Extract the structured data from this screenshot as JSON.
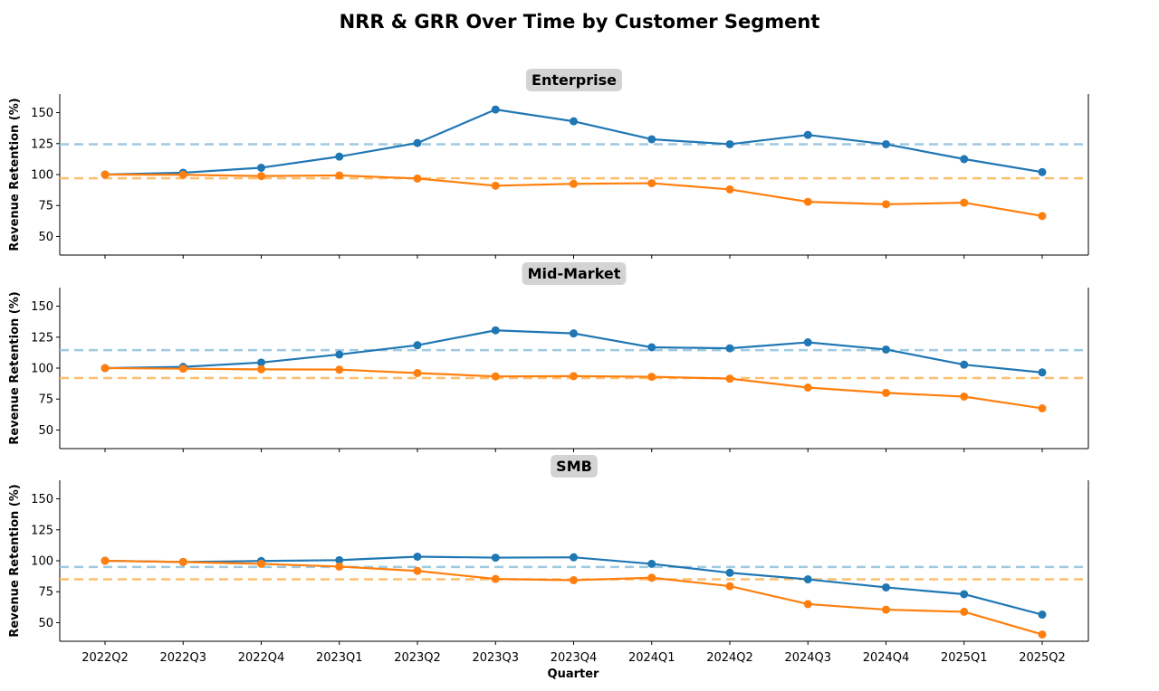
{
  "chart_data": {
    "type": "line",
    "title": "NRR & GRR Over Time by Customer Segment",
    "xlabel": "Quarter",
    "ylabel": "Revenue Retention (%)",
    "categories": [
      "2022Q2",
      "2022Q3",
      "2022Q4",
      "2023Q1",
      "2023Q2",
      "2023Q3",
      "2023Q4",
      "2024Q1",
      "2024Q2",
      "2024Q3",
      "2024Q4",
      "2025Q1",
      "2025Q2"
    ],
    "ylim": [
      35,
      165
    ],
    "yticks": [
      50,
      75,
      100,
      125,
      150
    ],
    "grid": false,
    "colors": {
      "nrr": "#1f77b4",
      "grr": "#ff7f0e",
      "nrr_avg": "#9ecae1",
      "grr_avg": "#fdbf6f",
      "title_box": "#d3d3d3"
    },
    "panels": [
      {
        "title": "Enterprise",
        "series": [
          {
            "key": "nrr",
            "values": [
              100,
              101.5,
              105.5,
              114.5,
              125.5,
              152.5,
              143,
              128.5,
              124.5,
              132,
              124.5,
              112.5,
              102
            ]
          },
          {
            "key": "grr",
            "values": [
              100,
              99.8,
              98.8,
              99.3,
              96.8,
              91,
              92.5,
              93,
              88,
              78,
              76,
              77.3,
              66.5
            ]
          }
        ],
        "reference_lines": [
          {
            "key": "nrr_avg",
            "value": 124.5
          },
          {
            "key": "grr_avg",
            "value": 97
          }
        ]
      },
      {
        "title": "Mid-Market",
        "series": [
          {
            "key": "nrr",
            "values": [
              100,
              101,
              104.5,
              111,
              118.5,
              130.5,
              128,
              116.8,
              116,
              120.8,
              115,
              102.8,
              96.5
            ]
          },
          {
            "key": "grr",
            "values": [
              100,
              99.5,
              99,
              98.8,
              96,
              93.3,
              93.5,
              93,
              91.5,
              84.3,
              80,
              77,
              67.5
            ]
          }
        ],
        "reference_lines": [
          {
            "key": "nrr_avg",
            "value": 114.5
          },
          {
            "key": "grr_avg",
            "value": 92
          }
        ]
      },
      {
        "title": "SMB",
        "series": [
          {
            "key": "nrr",
            "values": [
              100,
              99,
              99.8,
              100.5,
              103.3,
              102.5,
              102.8,
              97.5,
              90.3,
              85,
              78.5,
              73,
              56.5
            ]
          },
          {
            "key": "grr",
            "values": [
              100,
              99,
              97.5,
              95.3,
              91.8,
              85.3,
              84.3,
              86.3,
              79.5,
              65,
              60.5,
              58.8,
              40.5
            ]
          }
        ],
        "reference_lines": [
          {
            "key": "nrr_avg",
            "value": 95
          }
        ],
        "grr_avg_line": {
          "key": "grr_avg",
          "value": 85
        }
      }
    ]
  }
}
